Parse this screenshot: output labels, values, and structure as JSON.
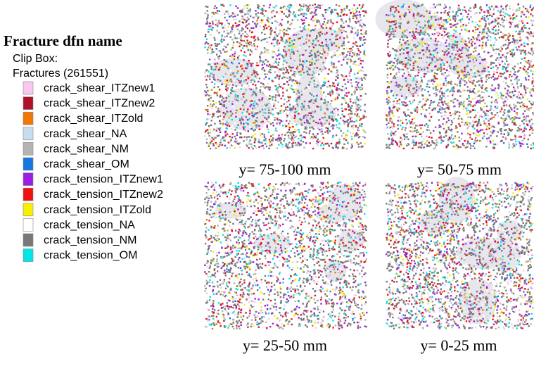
{
  "legend": {
    "title": "Fracture dfn name",
    "clip_box": "Clip Box:",
    "fractures": "Fractures (261551)",
    "entries": [
      {
        "name": "crack_shear_ITZnew1",
        "color": "#f8c8f0"
      },
      {
        "name": "crack_shear_ITZnew2",
        "color": "#b0102a"
      },
      {
        "name": "crack_shear_ITZold",
        "color": "#f07800"
      },
      {
        "name": "crack_shear_NA",
        "color": "#c8dcf0"
      },
      {
        "name": "crack_shear_NM",
        "color": "#b4b4b4"
      },
      {
        "name": "crack_shear_OM",
        "color": "#1478e0"
      },
      {
        "name": "crack_tension_ITZnew1",
        "color": "#9b1ee6"
      },
      {
        "name": "crack_tension_ITZnew2",
        "color": "#f01010"
      },
      {
        "name": "crack_tension_ITZold",
        "color": "#f5f000"
      },
      {
        "name": "crack_tension_NA",
        "color": "#ffffff"
      },
      {
        "name": "crack_tension_NM",
        "color": "#787878"
      },
      {
        "name": "crack_tension_OM",
        "color": "#00e6e6"
      }
    ]
  },
  "panels": [
    {
      "caption": "y= 75-100 mm"
    },
    {
      "caption": "y= 50-75 mm"
    },
    {
      "caption": "y= 25-50 mm"
    },
    {
      "caption": "y= 0-25 mm"
    }
  ]
}
